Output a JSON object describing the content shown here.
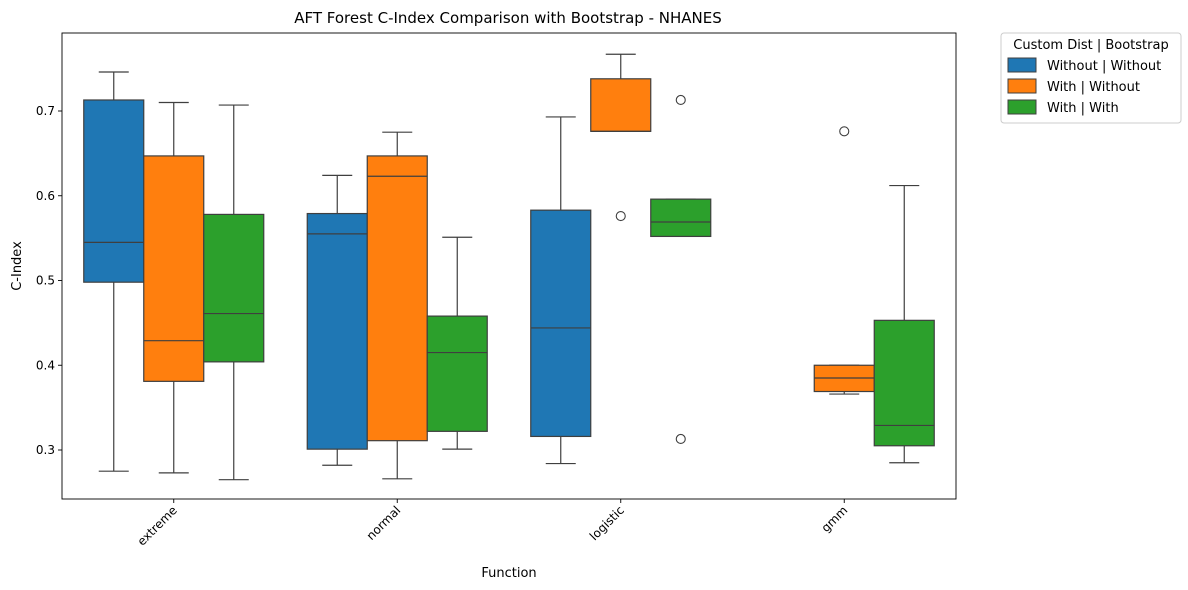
{
  "chart_data": {
    "type": "boxplot",
    "title": "AFT Forest C-Index Comparison with Bootstrap - NHANES",
    "xlabel": "Function",
    "ylabel": "C-Index",
    "ylim": [
      0.24,
      0.79
    ],
    "yticks": [
      "0.3",
      "0.4",
      "0.5",
      "0.6",
      "0.7"
    ],
    "categories": [
      "extreme",
      "normal",
      "logistic",
      "gmm"
    ],
    "grid": false,
    "legend": {
      "title": "Custom Dist | Bootstrap",
      "placement": "outside-top-right"
    },
    "series": [
      {
        "name": "Without | Without",
        "color": "#1f77b4",
        "boxes": [
          {
            "whisker_low": 0.275,
            "q1": 0.498,
            "median": 0.545,
            "q3": 0.713,
            "whisker_high": 0.746,
            "outliers": []
          },
          {
            "whisker_low": 0.282,
            "q1": 0.301,
            "median": 0.555,
            "q3": 0.579,
            "whisker_high": 0.624,
            "outliers": []
          },
          {
            "whisker_low": 0.284,
            "q1": 0.316,
            "median": 0.444,
            "q3": 0.583,
            "whisker_high": 0.693,
            "outliers": []
          },
          null
        ]
      },
      {
        "name": "With | Without",
        "color": "#ff7f0e",
        "boxes": [
          {
            "whisker_low": 0.273,
            "q1": 0.381,
            "median": 0.429,
            "q3": 0.647,
            "whisker_high": 0.71,
            "outliers": []
          },
          {
            "whisker_low": 0.266,
            "q1": 0.311,
            "median": 0.623,
            "q3": 0.647,
            "whisker_high": 0.675,
            "outliers": []
          },
          {
            "whisker_low": 0.676,
            "q1": 0.676,
            "median": 0.676,
            "q3": 0.738,
            "whisker_high": 0.767,
            "outliers": [
              0.576
            ]
          },
          {
            "whisker_low": 0.366,
            "q1": 0.369,
            "median": 0.385,
            "q3": 0.4,
            "whisker_high": 0.4,
            "outliers": [
              0.676
            ]
          }
        ]
      },
      {
        "name": "With | With",
        "color": "#2ca02c",
        "boxes": [
          {
            "whisker_low": 0.265,
            "q1": 0.404,
            "median": 0.461,
            "q3": 0.578,
            "whisker_high": 0.707,
            "outliers": []
          },
          {
            "whisker_low": 0.301,
            "q1": 0.322,
            "median": 0.415,
            "q3": 0.458,
            "whisker_high": 0.551,
            "outliers": []
          },
          {
            "whisker_low": 0.552,
            "q1": 0.552,
            "median": 0.569,
            "q3": 0.596,
            "whisker_high": 0.596,
            "outliers": [
              0.713,
              0.313
            ]
          },
          {
            "whisker_low": 0.285,
            "q1": 0.305,
            "median": 0.329,
            "q3": 0.453,
            "whisker_high": 0.612,
            "outliers": []
          }
        ]
      }
    ]
  }
}
